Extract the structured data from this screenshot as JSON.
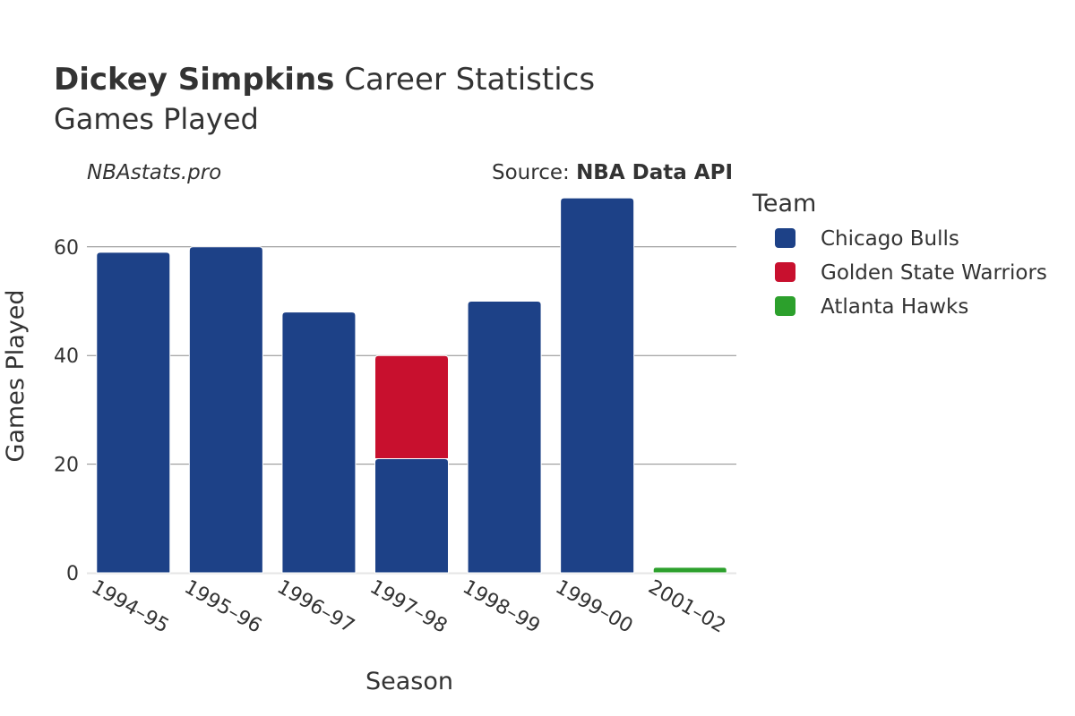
{
  "header": {
    "player_name": "Dickey Simpkins",
    "title_suffix": " Career Statistics",
    "subtitle": "Games Played"
  },
  "credits": {
    "site": "NBAstats.pro",
    "source_prefix": "Source: ",
    "source_name": "NBA Data API"
  },
  "legend": {
    "title": "Team"
  },
  "colors": {
    "Chicago Bulls": "#1d4187",
    "Golden State Warriors": "#c8102e",
    "Atlanta Hawks": "#2ca02c",
    "grid": "#8c8c8c",
    "baseline": "#e6e6e6"
  },
  "chart_data": {
    "type": "bar",
    "stacked": true,
    "title": "Dickey Simpkins Career Statistics",
    "subtitle": "Games Played",
    "xlabel": "Season",
    "ylabel": "Games Played",
    "ylim": [
      0,
      70
    ],
    "yticks": [
      0,
      20,
      40,
      60
    ],
    "grid": true,
    "legend_position": "right",
    "categories": [
      "1994–95",
      "1995–96",
      "1996–97",
      "1997–98",
      "1998–99",
      "1999–00",
      "2001–02"
    ],
    "series": [
      {
        "name": "Chicago Bulls",
        "values": [
          59,
          60,
          48,
          21,
          50,
          69,
          0
        ]
      },
      {
        "name": "Golden State Warriors",
        "values": [
          0,
          0,
          0,
          19,
          0,
          0,
          0
        ]
      },
      {
        "name": "Atlanta Hawks",
        "values": [
          0,
          0,
          0,
          0,
          0,
          0,
          1
        ]
      }
    ]
  }
}
